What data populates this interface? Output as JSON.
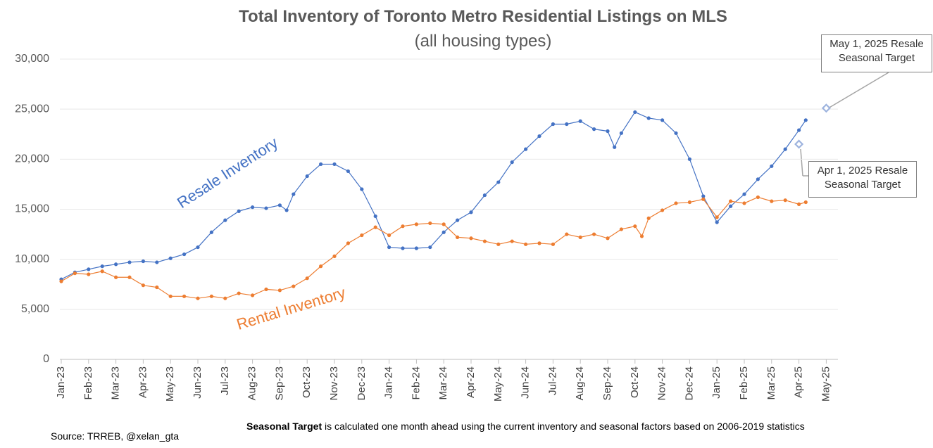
{
  "chart_data": {
    "type": "line",
    "title": "Total Inventory of Toronto Metro Residential Listings on MLS",
    "subtitle": "(all housing types)",
    "xlim": [
      0,
      28
    ],
    "xticks": [
      {
        "value": 0,
        "label": "Jan-23"
      },
      {
        "value": 1,
        "label": "Feb-23"
      },
      {
        "value": 2,
        "label": "Mar-23"
      },
      {
        "value": 3,
        "label": "Apr-23"
      },
      {
        "value": 4,
        "label": "May-23"
      },
      {
        "value": 5,
        "label": "Jun-23"
      },
      {
        "value": 6,
        "label": "Jul-23"
      },
      {
        "value": 7,
        "label": "Aug-23"
      },
      {
        "value": 8,
        "label": "Sep-23"
      },
      {
        "value": 9,
        "label": "Oct-23"
      },
      {
        "value": 10,
        "label": "Nov-23"
      },
      {
        "value": 11,
        "label": "Dec-23"
      },
      {
        "value": 12,
        "label": "Jan-24"
      },
      {
        "value": 13,
        "label": "Feb-24"
      },
      {
        "value": 14,
        "label": "Mar-24"
      },
      {
        "value": 15,
        "label": "Apr-24"
      },
      {
        "value": 16,
        "label": "May-24"
      },
      {
        "value": 17,
        "label": "Jun-24"
      },
      {
        "value": 18,
        "label": "Jul-24"
      },
      {
        "value": 19,
        "label": "Aug-24"
      },
      {
        "value": 20,
        "label": "Sep-24"
      },
      {
        "value": 21,
        "label": "Oct-24"
      },
      {
        "value": 22,
        "label": "Nov-24"
      },
      {
        "value": 23,
        "label": "Dec-24"
      },
      {
        "value": 24,
        "label": "Jan-25"
      },
      {
        "value": 25,
        "label": "Feb-25"
      },
      {
        "value": 26,
        "label": "Mar-25"
      },
      {
        "value": 27,
        "label": "Apr-25"
      },
      {
        "value": 28,
        "label": "May-25"
      }
    ],
    "ylim": [
      0,
      30000
    ],
    "yticks": [
      0,
      {
        "value": 5000,
        "label": "5,000"
      },
      {
        "value": 10000,
        "label": "10,000"
      },
      {
        "value": 15000,
        "label": "15,000"
      },
      {
        "value": 20000,
        "label": "20,000"
      },
      {
        "value": 25000,
        "label": "25,000"
      },
      {
        "value": 30000,
        "label": "30,000"
      }
    ],
    "grid": true,
    "series": [
      {
        "name": "Resale Inventory",
        "color": "#4472c4",
        "x": [
          0,
          0.5,
          1,
          1.5,
          2,
          2.5,
          3,
          3.5,
          4,
          4.5,
          5,
          5.5,
          6,
          6.5,
          7,
          7.5,
          8,
          8.25,
          8.5,
          9,
          9.5,
          10,
          10.5,
          11,
          11.5,
          12,
          12.5,
          13,
          13.5,
          14,
          14.5,
          15,
          15.5,
          16,
          16.5,
          17,
          17.5,
          18,
          18.5,
          19,
          19.5,
          20,
          20.25,
          20.5,
          21,
          21.5,
          22,
          22.5,
          23,
          23.5,
          24,
          24.5,
          25,
          25.5,
          26,
          26.5,
          27,
          27.25
        ],
        "values": [
          8000,
          8700,
          9000,
          9300,
          9500,
          9700,
          9800,
          9700,
          10100,
          10500,
          11200,
          12700,
          13900,
          14800,
          15200,
          15100,
          15400,
          14900,
          16500,
          18300,
          19500,
          19500,
          18800,
          17000,
          14300,
          11200,
          11100,
          11100,
          11200,
          12700,
          13900,
          14700,
          16400,
          17700,
          19700,
          21000,
          22300,
          23500,
          23500,
          23800,
          23000,
          22800,
          21200,
          22600,
          24700,
          24100,
          23900,
          22600,
          20000,
          16300,
          13700,
          15300,
          16500,
          18000,
          19300,
          21000,
          22900,
          23900
        ]
      },
      {
        "name": "Rental Inventory",
        "color": "#ed7d31",
        "x": [
          0,
          0.5,
          1,
          1.5,
          2,
          2.5,
          3,
          3.5,
          4,
          4.5,
          5,
          5.5,
          6,
          6.5,
          7,
          7.5,
          8,
          8.5,
          9,
          9.5,
          10,
          10.5,
          11,
          11.5,
          12,
          12.5,
          13,
          13.5,
          14,
          14.5,
          15,
          15.5,
          16,
          16.5,
          17,
          17.5,
          18,
          18.5,
          19,
          19.5,
          20,
          20.5,
          21,
          21.25,
          21.5,
          22,
          22.5,
          23,
          23.5,
          24,
          24.5,
          25,
          25.5,
          26,
          26.5,
          27,
          27.25
        ],
        "values": [
          7800,
          8600,
          8500,
          8800,
          8200,
          8200,
          7400,
          7200,
          6300,
          6300,
          6100,
          6300,
          6100,
          6600,
          6400,
          7000,
          6900,
          7300,
          8100,
          9300,
          10300,
          11600,
          12400,
          13200,
          12400,
          13300,
          13500,
          13600,
          13500,
          12200,
          12100,
          11800,
          11500,
          11800,
          11500,
          11600,
          11500,
          12500,
          12200,
          12500,
          12100,
          13000,
          13300,
          12300,
          14100,
          14900,
          15600,
          15700,
          16000,
          14200,
          15800,
          15600,
          16200,
          15800,
          15900,
          15500,
          15700
        ]
      }
    ],
    "targets": [
      {
        "label": "Apr 1, 2025 Resale Seasonal Target",
        "x": 27,
        "value": 21500,
        "color": "#9db3de"
      },
      {
        "label": "May 1, 2025 Resale Seasonal Target",
        "x": 28,
        "value": 25100,
        "color": "#9db3de"
      }
    ],
    "source": "Source: TRREB, @xelan_gta",
    "footnote": {
      "bold": "Seasonal Target",
      "text": "is calculated one month ahead using the current inventory and seasonal factors based on 2006-2019 statistics"
    }
  }
}
